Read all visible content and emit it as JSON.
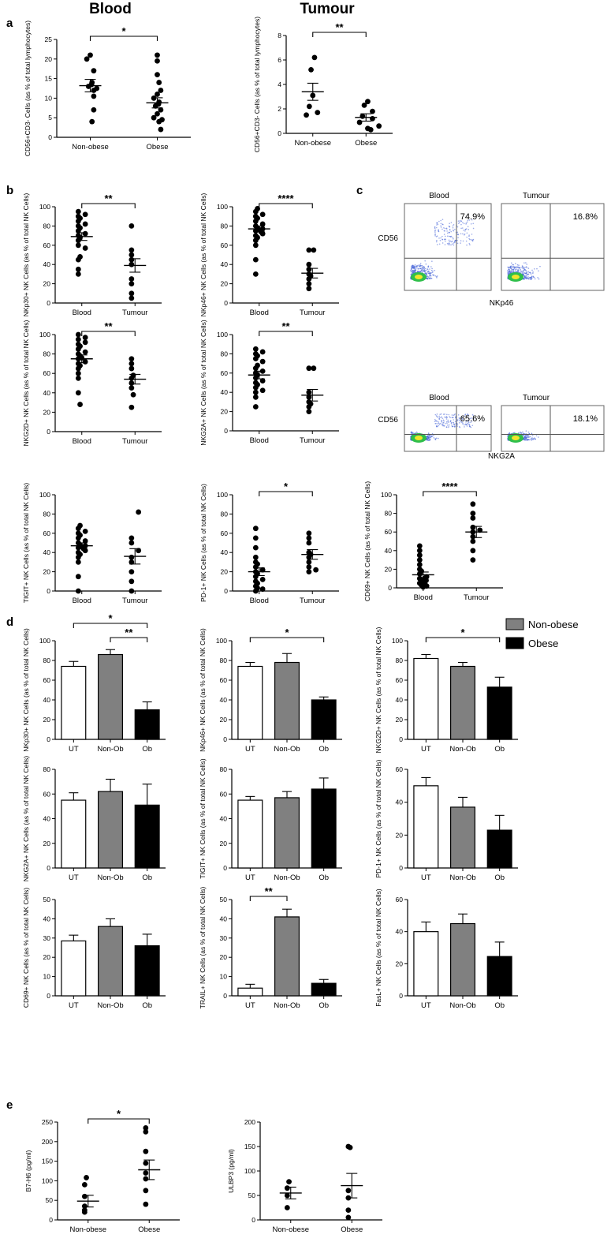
{
  "headers": {
    "blood": "Blood",
    "tumour": "Tumour"
  },
  "panel_letters": {
    "a": "a",
    "b": "b",
    "c": "c",
    "d": "d",
    "e": "e"
  },
  "legend": {
    "items": [
      {
        "label": "Non-obese",
        "color": "#808080"
      },
      {
        "label": "Obese",
        "color": "#000000"
      }
    ]
  },
  "flow": {
    "blood": "Blood",
    "tumour": "Tumour",
    "yaxis": "CD56",
    "row1_x": "NKp46",
    "row2_x": "NKG2A",
    "percentages": [
      "74.9%",
      "16.8%",
      "65.6%",
      "18.1%"
    ]
  },
  "chart_data": [
    {
      "id": "a1",
      "type": "scatter",
      "ylabel": "CD56+CD3- Cells (as % of total lymphocytes)",
      "categories": [
        "Non-obese",
        "Obese"
      ],
      "ylim": [
        0,
        25
      ],
      "yticks": [
        0,
        5,
        10,
        15,
        20,
        25
      ],
      "series": [
        {
          "name": "Non-obese",
          "values": [
            21,
            20,
            17,
            14,
            13.5,
            13,
            12.5,
            12,
            10.5,
            7,
            4
          ],
          "mean": 13.2,
          "sem": 1.6
        },
        {
          "name": "Obese",
          "values": [
            21,
            19.5,
            16,
            14,
            12,
            11,
            10,
            9,
            8.5,
            8,
            7,
            6,
            5,
            4.5,
            4,
            2
          ],
          "mean": 8.8,
          "sem": 1.3
        }
      ],
      "significance": [
        {
          "from": 0,
          "to": 1,
          "label": "*"
        }
      ]
    },
    {
      "id": "a2",
      "type": "scatter",
      "ylabel": "CD56+CD3- Cells (as % of total lymphocytes)",
      "categories": [
        "Non-obese",
        "Obese"
      ],
      "ylim": [
        0,
        8
      ],
      "yticks": [
        0,
        2,
        4,
        6,
        8
      ],
      "series": [
        {
          "name": "Non-obese",
          "values": [
            6.2,
            5.2,
            3.1,
            2.2,
            1.7,
            1.5
          ],
          "mean": 3.4,
          "sem": 0.7
        },
        {
          "name": "Obese",
          "values": [
            2.6,
            2.3,
            1.8,
            1.4,
            1.2,
            0.9,
            0.6,
            0.4,
            0.3
          ],
          "mean": 1.3,
          "sem": 0.3
        }
      ],
      "significance": [
        {
          "from": 0,
          "to": 1,
          "label": "**"
        }
      ]
    },
    {
      "id": "b1",
      "type": "scatter",
      "ylabel": "NKp30+ NK Cells (as % of total NK Cells)",
      "categories": [
        "Blood",
        "Tumour"
      ],
      "ylim": [
        0,
        100
      ],
      "yticks": [
        0,
        20,
        40,
        60,
        80,
        100
      ],
      "series": [
        {
          "name": "Blood",
          "values": [
            95,
            92,
            90,
            88,
            85,
            82,
            80,
            78,
            75,
            72,
            70,
            68,
            65,
            60,
            57,
            48,
            45,
            35,
            30
          ],
          "mean": 69,
          "sem": 4
        },
        {
          "name": "Tumour",
          "values": [
            80,
            55,
            50,
            45,
            40,
            25,
            20,
            10,
            5
          ],
          "mean": 39,
          "sem": 7
        }
      ],
      "significance": [
        {
          "from": 0,
          "to": 1,
          "label": "**"
        }
      ]
    },
    {
      "id": "b2",
      "type": "scatter",
      "ylabel": "NKp46+ NK Cells (as % of total NK Cells)",
      "categories": [
        "Blood",
        "Tumour"
      ],
      "ylim": [
        0,
        100
      ],
      "yticks": [
        0,
        20,
        40,
        60,
        80,
        100
      ],
      "series": [
        {
          "name": "Blood",
          "values": [
            98,
            95,
            92,
            90,
            88,
            85,
            82,
            80,
            78,
            77,
            76,
            75,
            74,
            72,
            70,
            68,
            65,
            60,
            45,
            30
          ],
          "mean": 77,
          "sem": 3
        },
        {
          "name": "Tumour",
          "values": [
            55,
            55,
            40,
            35,
            30,
            28,
            25,
            20,
            15
          ],
          "mean": 31,
          "sem": 5
        }
      ],
      "significance": [
        {
          "from": 0,
          "to": 1,
          "label": "****"
        }
      ]
    },
    {
      "id": "b3",
      "type": "scatter",
      "ylabel": "NKG2D+ NK Cells (as % of total NK Cells)",
      "categories": [
        "Blood",
        "Tumour"
      ],
      "ylim": [
        0,
        100
      ],
      "yticks": [
        0,
        20,
        40,
        60,
        80,
        100
      ],
      "series": [
        {
          "name": "Blood",
          "values": [
            100,
            97,
            95,
            92,
            90,
            88,
            85,
            82,
            80,
            78,
            76,
            75,
            72,
            70,
            68,
            65,
            60,
            55,
            40,
            28
          ],
          "mean": 75,
          "sem": 4
        },
        {
          "name": "Tumour",
          "values": [
            75,
            70,
            65,
            58,
            55,
            50,
            45,
            38,
            25
          ],
          "mean": 54,
          "sem": 5
        }
      ],
      "significance": [
        {
          "from": 0,
          "to": 1,
          "label": "**"
        }
      ]
    },
    {
      "id": "b4",
      "type": "scatter",
      "ylabel": "NKG2A+ NK Cells (as % of total NK Cells)",
      "categories": [
        "Blood",
        "Tumour"
      ],
      "ylim": [
        0,
        100
      ],
      "yticks": [
        0,
        20,
        40,
        60,
        80,
        100
      ],
      "series": [
        {
          "name": "Blood",
          "values": [
            85,
            82,
            80,
            78,
            75,
            72,
            68,
            65,
            62,
            60,
            58,
            55,
            52,
            50,
            48,
            45,
            42,
            40,
            35,
            25
          ],
          "mean": 58,
          "sem": 4
        },
        {
          "name": "Tumour",
          "values": [
            65,
            65,
            40,
            35,
            30,
            28,
            25,
            20
          ],
          "mean": 37,
          "sem": 6
        }
      ],
      "significance": [
        {
          "from": 0,
          "to": 1,
          "label": "**"
        }
      ]
    },
    {
      "id": "b5",
      "type": "scatter",
      "ylabel": "TIGIT+ NK Cells (as % of total NK Cells)",
      "categories": [
        "Blood",
        "Tumour"
      ],
      "ylim": [
        0,
        100
      ],
      "yticks": [
        0,
        20,
        40,
        60,
        80,
        100
      ],
      "series": [
        {
          "name": "Blood",
          "values": [
            68,
            65,
            62,
            60,
            58,
            55,
            52,
            50,
            48,
            47,
            46,
            45,
            44,
            42,
            40,
            38,
            35,
            30,
            15,
            0
          ],
          "mean": 47,
          "sem": 3
        },
        {
          "name": "Tumour",
          "values": [
            82,
            55,
            50,
            42,
            35,
            30,
            20,
            10,
            0
          ],
          "mean": 36,
          "sem": 8
        }
      ],
      "significance": []
    },
    {
      "id": "b6",
      "type": "scatter",
      "ylabel": "PD-1+ NK Cells (as % of total NK Cells)",
      "categories": [
        "Blood",
        "Tumour"
      ],
      "ylim": [
        0,
        100
      ],
      "yticks": [
        0,
        20,
        40,
        60,
        80,
        100
      ],
      "series": [
        {
          "name": "Blood",
          "values": [
            65,
            55,
            45,
            35,
            30,
            28,
            25,
            22,
            20,
            18,
            15,
            12,
            10,
            8,
            5,
            3,
            2,
            0
          ],
          "mean": 20,
          "sem": 4
        },
        {
          "name": "Tumour",
          "values": [
            60,
            55,
            50,
            40,
            38,
            35,
            30,
            25,
            22,
            20
          ],
          "mean": 38,
          "sem": 5
        }
      ],
      "significance": [
        {
          "from": 0,
          "to": 1,
          "label": "*"
        }
      ]
    },
    {
      "id": "b7",
      "type": "scatter",
      "ylabel": "CD69+ NK Cells (as % of total NK Cells)",
      "categories": [
        "Blood",
        "Tumour"
      ],
      "ylim": [
        0,
        100
      ],
      "yticks": [
        0,
        20,
        40,
        60,
        80,
        100
      ],
      "series": [
        {
          "name": "Blood",
          "values": [
            45,
            40,
            35,
            30,
            25,
            20,
            18,
            15,
            12,
            10,
            10,
            8,
            8,
            6,
            5,
            5,
            4,
            3,
            2,
            1
          ],
          "mean": 14,
          "sem": 3
        },
        {
          "name": "Tumour",
          "values": [
            90,
            80,
            75,
            65,
            62,
            60,
            55,
            50,
            40,
            30
          ],
          "mean": 60,
          "sem": 6
        }
      ],
      "significance": [
        {
          "from": 0,
          "to": 1,
          "label": "****"
        }
      ]
    },
    {
      "id": "d1",
      "type": "bar",
      "ylabel": "NKp30+ NK Cells (as % of total NK Cells)",
      "categories": [
        "UT",
        "Non-Ob",
        "Ob"
      ],
      "values": [
        74,
        86,
        30
      ],
      "errors": [
        5,
        5,
        8
      ],
      "ylim": [
        0,
        100
      ],
      "yticks": [
        0,
        20,
        40,
        60,
        80,
        100
      ],
      "significance": [
        {
          "from": 0,
          "to": 2,
          "label": "*"
        },
        {
          "from": 1,
          "to": 2,
          "label": "**"
        }
      ]
    },
    {
      "id": "d2",
      "type": "bar",
      "ylabel": "NKp46+ NK Cells (as % of total NK Cells)",
      "categories": [
        "UT",
        "Non-Ob",
        "Ob"
      ],
      "values": [
        74,
        78,
        40
      ],
      "errors": [
        4,
        9,
        3
      ],
      "ylim": [
        0,
        100
      ],
      "yticks": [
        0,
        20,
        40,
        60,
        80,
        100
      ],
      "significance": [
        {
          "from": 0,
          "to": 2,
          "label": "*"
        }
      ]
    },
    {
      "id": "d3",
      "type": "bar",
      "ylabel": "NKG2D+ NK Cells (as % of total NK Cells)",
      "categories": [
        "UT",
        "Non-Ob",
        "Ob"
      ],
      "values": [
        82,
        74,
        53
      ],
      "errors": [
        4,
        4,
        10
      ],
      "ylim": [
        0,
        100
      ],
      "yticks": [
        0,
        20,
        40,
        60,
        80,
        100
      ],
      "significance": [
        {
          "from": 0,
          "to": 2,
          "label": "*"
        }
      ]
    },
    {
      "id": "d4",
      "type": "bar",
      "ylabel": "NKG2A+ NK Cells (as % of total NK Cells)",
      "categories": [
        "UT",
        "Non-Ob",
        "Ob"
      ],
      "values": [
        55,
        62,
        51
      ],
      "errors": [
        6,
        10,
        17
      ],
      "ylim": [
        0,
        80
      ],
      "yticks": [
        0,
        20,
        40,
        60,
        80
      ],
      "significance": []
    },
    {
      "id": "d5",
      "type": "bar",
      "ylabel": "TIGIT+ NK Cells (as % of total NK Cells)",
      "categories": [
        "UT",
        "Non-Ob",
        "Ob"
      ],
      "values": [
        55,
        57,
        64
      ],
      "errors": [
        3,
        5,
        9
      ],
      "ylim": [
        0,
        80
      ],
      "yticks": [
        0,
        20,
        40,
        60,
        80
      ],
      "significance": []
    },
    {
      "id": "d6",
      "type": "bar",
      "ylabel": "PD-1+ NK Cells (as % of total NK Cells)",
      "categories": [
        "UT",
        "Non-Ob",
        "Ob"
      ],
      "values": [
        50,
        37,
        23
      ],
      "errors": [
        5,
        6,
        9
      ],
      "ylim": [
        0,
        60
      ],
      "yticks": [
        0,
        20,
        40,
        60
      ],
      "significance": []
    },
    {
      "id": "d7",
      "type": "bar",
      "ylabel": "CD69+ NK Cells (as % of total NK Cells)",
      "categories": [
        "UT",
        "Non-Ob",
        "Ob"
      ],
      "values": [
        28.5,
        36,
        26
      ],
      "errors": [
        3,
        4,
        6
      ],
      "ylim": [
        0,
        50
      ],
      "yticks": [
        0,
        10,
        20,
        30,
        40,
        50
      ],
      "significance": []
    },
    {
      "id": "d8",
      "type": "bar",
      "ylabel": "TRAIL+ NK Cells (as % of total NK Cells)",
      "categories": [
        "UT",
        "Non-Ob",
        "Ob"
      ],
      "values": [
        4,
        41,
        6.5
      ],
      "errors": [
        2,
        4,
        2
      ],
      "ylim": [
        0,
        50
      ],
      "yticks": [
        0,
        10,
        20,
        30,
        40,
        50
      ],
      "significance": [
        {
          "from": 0,
          "to": 1,
          "label": "**"
        }
      ]
    },
    {
      "id": "d9",
      "type": "bar",
      "ylabel": "FasL+ NK Cells (as % of total NK Cells)",
      "categories": [
        "UT",
        "Non-Ob",
        "Ob"
      ],
      "values": [
        40,
        45,
        24.5
      ],
      "errors": [
        6,
        6,
        9
      ],
      "ylim": [
        0,
        60
      ],
      "yticks": [
        0,
        20,
        40,
        60
      ],
      "significance": []
    },
    {
      "id": "e1",
      "type": "scatter",
      "ylabel": "B7-H6 (pg/ml)",
      "categories": [
        "Non-obese",
        "Obese"
      ],
      "ylim": [
        0,
        250
      ],
      "yticks": [
        0,
        50,
        100,
        150,
        200,
        250
      ],
      "series": [
        {
          "name": "Non-obese",
          "values": [
            108,
            90,
            60,
            35,
            25,
            20
          ],
          "mean": 48,
          "sem": 15
        },
        {
          "name": "Obese",
          "values": [
            235,
            225,
            175,
            145,
            120,
            105,
            75,
            40
          ],
          "mean": 128,
          "sem": 25
        }
      ],
      "significance": [
        {
          "from": 0,
          "to": 1,
          "label": "*"
        }
      ]
    },
    {
      "id": "e2",
      "type": "scatter",
      "ylabel": "ULBP3 (pg/ml)",
      "categories": [
        "Non-obese",
        "Obese"
      ],
      "ylim": [
        0,
        200
      ],
      "yticks": [
        0,
        50,
        100,
        150,
        200
      ],
      "series": [
        {
          "name": "Non-obese",
          "values": [
            78,
            65,
            50,
            25
          ],
          "mean": 55,
          "sem": 12
        },
        {
          "name": "Obese",
          "values": [
            150,
            148,
            60,
            45,
            20,
            5
          ],
          "mean": 70,
          "sem": 25
        }
      ],
      "significance": []
    }
  ]
}
